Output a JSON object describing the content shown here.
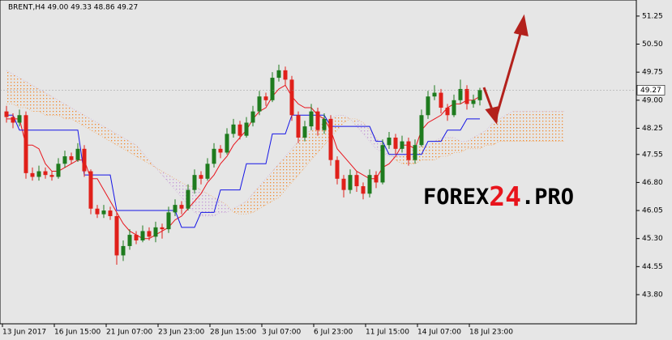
{
  "chart_data": {
    "type": "candlestick",
    "header": "BRENT,H4 49.00 49.33 48.86 49.27",
    "watermark": [
      "FOREX",
      "24",
      ".PRO"
    ],
    "categories": [
      "13 Jun 2017",
      null,
      null,
      null,
      null,
      null,
      null,
      null,
      "16 Jun 15:00",
      null,
      null,
      null,
      null,
      null,
      null,
      null,
      "21 Jun 07:00",
      null,
      null,
      null,
      null,
      null,
      null,
      null,
      "23 Jun 23:00",
      null,
      null,
      null,
      null,
      null,
      null,
      null,
      "28 Jun 15:00",
      null,
      null,
      null,
      null,
      null,
      null,
      null,
      "3 Jul 07:00",
      null,
      null,
      null,
      null,
      null,
      null,
      null,
      "6 Jul 23:00",
      null,
      null,
      null,
      null,
      null,
      null,
      null,
      "11 Jul 15:00",
      null,
      null,
      null,
      null,
      null,
      null,
      null,
      "14 Jul 07:00",
      null,
      null,
      null,
      null,
      null,
      null,
      null,
      "18 Jul 23:00",
      null,
      null,
      null,
      null,
      null,
      null,
      null,
      null,
      null,
      null,
      null,
      null,
      null,
      null
    ],
    "open": [
      48.7,
      48.55,
      48.4,
      48.6,
      47.05,
      46.95,
      47.1,
      47.0,
      46.95,
      47.3,
      47.5,
      47.4,
      47.7,
      47.1,
      46.1,
      45.95,
      46.05,
      45.9,
      44.85,
      45.1,
      45.4,
      45.25,
      45.5,
      45.35,
      45.6,
      45.55,
      46.0,
      46.2,
      46.1,
      46.6,
      47.0,
      46.9,
      47.3,
      47.7,
      47.6,
      48.1,
      48.35,
      48.05,
      48.4,
      48.7,
      49.1,
      49.0,
      49.6,
      49.8,
      49.55,
      48.6,
      48.0,
      48.3,
      48.7,
      48.2,
      48.5,
      47.4,
      46.9,
      46.6,
      47.0,
      46.7,
      46.5,
      47.0,
      46.8,
      47.8,
      48.0,
      47.7,
      47.9,
      47.4,
      47.8,
      48.6,
      49.1,
      49.2,
      48.8,
      48.6,
      49.0,
      49.3,
      48.9,
      49.0,
      null,
      null,
      null,
      null,
      null,
      null,
      null,
      null,
      null,
      null,
      null,
      null,
      null
    ],
    "high": [
      48.85,
      48.65,
      48.75,
      48.7,
      47.2,
      47.25,
      47.2,
      47.1,
      47.45,
      47.65,
      47.6,
      47.85,
      47.8,
      47.15,
      46.2,
      46.2,
      46.15,
      46.0,
      45.25,
      45.55,
      45.5,
      45.65,
      45.6,
      45.75,
      45.7,
      46.15,
      46.35,
      46.3,
      46.75,
      47.15,
      47.1,
      47.45,
      47.85,
      47.8,
      48.25,
      48.5,
      48.45,
      48.55,
      48.85,
      49.25,
      49.2,
      49.75,
      49.95,
      49.9,
      49.65,
      48.7,
      48.45,
      48.9,
      48.8,
      48.65,
      48.6,
      47.5,
      47.0,
      47.15,
      47.1,
      46.8,
      47.15,
      47.1,
      47.95,
      48.15,
      48.1,
      48.05,
      48.0,
      47.95,
      48.75,
      49.25,
      49.4,
      49.3,
      48.9,
      49.15,
      49.55,
      49.4,
      49.15,
      49.33,
      null,
      null,
      null,
      null,
      null,
      null,
      null,
      null,
      null,
      null,
      null,
      null,
      null
    ],
    "low": [
      48.4,
      48.25,
      48.3,
      46.9,
      46.85,
      46.85,
      46.9,
      46.85,
      46.9,
      47.2,
      47.3,
      47.35,
      46.95,
      45.95,
      45.85,
      45.85,
      45.8,
      44.6,
      44.7,
      45.0,
      45.15,
      45.2,
      45.25,
      45.2,
      45.3,
      45.45,
      45.9,
      45.95,
      46.05,
      46.5,
      46.75,
      46.85,
      47.2,
      47.45,
      47.55,
      48.0,
      47.95,
      48.0,
      48.3,
      48.6,
      48.85,
      48.95,
      49.5,
      49.4,
      48.45,
      47.85,
      47.9,
      48.2,
      48.05,
      48.1,
      47.25,
      46.75,
      46.4,
      46.5,
      46.55,
      46.35,
      46.4,
      46.65,
      46.75,
      47.7,
      47.55,
      47.6,
      47.25,
      47.3,
      47.75,
      48.5,
      49.0,
      48.65,
      48.45,
      48.55,
      48.9,
      48.75,
      48.8,
      48.86,
      null,
      null,
      null,
      null,
      null,
      null,
      null,
      null,
      null,
      null,
      null,
      null,
      null
    ],
    "close": [
      48.55,
      48.4,
      48.6,
      47.05,
      46.95,
      47.1,
      47.0,
      46.95,
      47.3,
      47.5,
      47.4,
      47.7,
      47.1,
      46.1,
      45.95,
      46.05,
      45.9,
      44.85,
      45.1,
      45.4,
      45.25,
      45.5,
      45.35,
      45.6,
      45.55,
      46.0,
      46.2,
      46.1,
      46.6,
      47.0,
      46.9,
      47.3,
      47.7,
      47.6,
      48.1,
      48.35,
      48.05,
      48.4,
      48.7,
      49.1,
      49.0,
      49.6,
      49.8,
      49.55,
      48.6,
      48.0,
      48.3,
      48.7,
      48.2,
      48.5,
      47.4,
      46.9,
      46.6,
      47.0,
      46.7,
      46.5,
      47.0,
      46.8,
      47.8,
      48.0,
      47.7,
      47.9,
      47.4,
      47.8,
      48.6,
      49.1,
      49.2,
      48.8,
      48.6,
      49.0,
      49.3,
      48.9,
      49.0,
      49.27,
      null,
      null,
      null,
      null,
      null,
      null,
      null,
      null,
      null,
      null,
      null,
      null,
      null
    ],
    "up_color": "#1e7b1e",
    "down_color": "#e0201a",
    "lines": [
      {
        "color": "#e8141c",
        "values": [
          48.5,
          48.5,
          48.5,
          47.8,
          47.8,
          47.7,
          47.3,
          47.1,
          47.1,
          47.2,
          47.3,
          47.4,
          47.4,
          46.9,
          46.9,
          46.6,
          46.3,
          46.0,
          45.7,
          45.5,
          45.4,
          45.3,
          45.3,
          45.4,
          45.5,
          45.6,
          45.8,
          45.9,
          46.1,
          46.3,
          46.5,
          46.8,
          47.0,
          47.3,
          47.5,
          47.8,
          48.0,
          48.2,
          48.5,
          48.7,
          48.8,
          49.1,
          49.3,
          49.4,
          49.1,
          48.9,
          48.8,
          48.8,
          48.6,
          48.5,
          48.2,
          47.7,
          47.5,
          47.3,
          47.1,
          47.0,
          46.9,
          46.9,
          47.2,
          47.3,
          47.5,
          47.8,
          47.8,
          47.7,
          48.2,
          48.4,
          48.5,
          48.6,
          48.8,
          48.9,
          48.9,
          49.0,
          49.0,
          49.1,
          null,
          null,
          null,
          null,
          null,
          null,
          null,
          null,
          null,
          null,
          null,
          null,
          null
        ]
      },
      {
        "color": "#1414e6",
        "values": [
          48.6,
          48.6,
          48.2,
          48.2,
          48.2,
          48.2,
          48.2,
          48.2,
          48.2,
          48.2,
          48.2,
          48.2,
          47.0,
          47.0,
          47.0,
          47.0,
          47.0,
          46.05,
          46.05,
          46.05,
          46.05,
          46.05,
          46.05,
          46.05,
          46.05,
          46.05,
          46.05,
          45.6,
          45.6,
          45.6,
          46.0,
          46.0,
          46.0,
          46.6,
          46.6,
          46.6,
          46.6,
          47.3,
          47.3,
          47.3,
          47.3,
          48.1,
          48.1,
          48.1,
          48.6,
          48.6,
          48.6,
          48.6,
          48.6,
          48.6,
          48.3,
          48.3,
          48.3,
          48.3,
          48.3,
          48.3,
          48.3,
          47.9,
          47.9,
          47.55,
          47.55,
          47.55,
          47.55,
          47.55,
          47.55,
          47.9,
          47.9,
          47.9,
          48.2,
          48.2,
          48.2,
          48.5,
          48.5,
          48.5,
          null,
          null,
          null,
          null,
          null,
          null,
          null,
          null,
          null,
          null,
          null,
          null,
          null
        ]
      }
    ],
    "cloud": {
      "span_a": [
        49.8,
        49.7,
        49.6,
        49.5,
        49.4,
        49.3,
        49.2,
        49.1,
        49.0,
        48.9,
        48.8,
        48.7,
        48.6,
        48.5,
        48.4,
        48.3,
        48.2,
        48.1,
        48.0,
        47.9,
        47.8,
        47.6,
        47.4,
        47.2,
        47.0,
        46.8,
        46.6,
        46.4,
        46.2,
        46.0,
        45.9,
        45.9,
        45.9,
        46.0,
        46.0,
        46.1,
        46.2,
        46.3,
        46.5,
        46.7,
        46.9,
        47.1,
        47.3,
        47.5,
        47.7,
        47.9,
        48.1,
        48.2,
        48.3,
        48.4,
        48.5,
        48.6,
        48.6,
        48.5,
        48.3,
        48.1,
        47.9,
        47.7,
        47.6,
        47.5,
        47.5,
        47.5,
        47.6,
        47.7,
        47.8,
        47.8,
        47.9,
        48.0,
        48.0,
        48.0,
        47.9,
        47.9,
        48.0,
        48.1,
        48.2,
        48.4,
        48.5,
        48.6,
        48.7,
        48.7,
        48.7,
        48.7,
        48.7,
        48.7,
        48.7,
        48.7,
        48.7
      ],
      "span_b": [
        48.9,
        48.9,
        48.8,
        48.8,
        48.7,
        48.7,
        48.6,
        48.6,
        48.6,
        48.5,
        48.5,
        48.4,
        48.3,
        48.2,
        48.1,
        48.0,
        47.9,
        47.8,
        47.7,
        47.6,
        47.5,
        47.4,
        47.3,
        47.2,
        47.1,
        47.0,
        46.9,
        46.8,
        46.7,
        46.7,
        46.6,
        46.5,
        46.4,
        46.3,
        46.2,
        46.0,
        45.95,
        45.95,
        46.0,
        46.1,
        46.2,
        46.3,
        46.4,
        46.6,
        46.8,
        47.0,
        47.2,
        47.4,
        47.6,
        47.8,
        48.0,
        48.2,
        48.4,
        48.5,
        48.5,
        48.4,
        48.2,
        48.0,
        47.8,
        47.6,
        47.4,
        47.3,
        47.3,
        47.3,
        47.4,
        47.4,
        47.4,
        47.5,
        47.5,
        47.6,
        47.6,
        47.7,
        47.7,
        47.7,
        47.8,
        47.8,
        47.9,
        47.9,
        47.9,
        47.9,
        47.9,
        47.9,
        47.9,
        47.9,
        47.9,
        47.9,
        47.9
      ],
      "up_color": "#f4a050",
      "down_color": "#c9a0d8"
    },
    "ylim": [
      43.02,
      51.68
    ],
    "yticks": [
      {
        "value": 43.8,
        "label": "43.80"
      },
      44.55,
      {
        "value": 45.3,
        "label": "45.30"
      },
      46.05,
      {
        "value": 46.8,
        "label": "46.80"
      },
      47.55,
      48.25,
      {
        "value": 49,
        "label": "49.00"
      },
      49.75,
      {
        "value": 50.5,
        "label": "50.50"
      },
      51.25
    ],
    "grid": false
  }
}
